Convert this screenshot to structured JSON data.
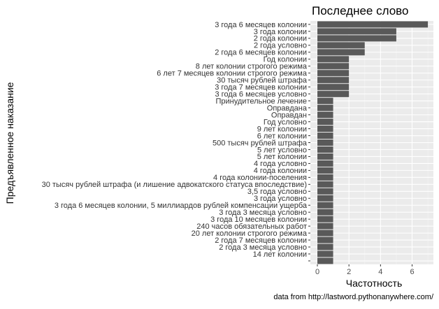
{
  "chart_data": {
    "type": "bar",
    "orientation": "horizontal",
    "title": "Последнее слово",
    "xlabel": "Частотность",
    "ylabel": "Предъявленное наказание",
    "caption": "data from http://lastword.pythonanywhere.com/",
    "xlim": [
      0,
      7.35
    ],
    "xticks": [
      "0",
      "2",
      "4",
      "6"
    ],
    "grid": true,
    "categories": [
      "3 года 6 месяцев колонии",
      "3 года колонии",
      "2 года колонии",
      "2 года условно",
      "2 года 6 месяцев колонии",
      "Год колонии",
      "8 лет колонии строгого режима",
      "6 лет 7 месяцев колонии строгого режима",
      "30 тысяч рублей штрафа",
      "3 года 7 месяцев колонии",
      "3 года 6 месяцев условно",
      "Принудительное лечение",
      "Оправдана",
      "Оправдан",
      "Год условно",
      "9 лет колонии",
      "6 лет колонии",
      "500 тысяч рублей штрафа",
      "5 лет условно",
      "5 лет колонии",
      "4 года условно",
      "4 года колонии",
      "4 года колонии-поселения",
      "30 тысяч рублей штрафа (и лишение адвокатского статуса впоследствие)",
      "3,5 года условно",
      "3 года условно",
      "3 года 6 месяцев колонии, 5 миллиардов рублей компенсации ущерба",
      "3 года 3 месяца условно",
      "3 года 10 месяцев колонии",
      "240 часов обязательных работ",
      "20 лет колонии строгого режима",
      "2 года 7 месяцев колонии",
      "2 года 3 месяца условно",
      "14 лет колонии",
      ""
    ],
    "values": [
      7,
      5,
      5,
      3,
      3,
      2,
      2,
      2,
      2,
      2,
      2,
      1,
      1,
      1,
      1,
      1,
      1,
      1,
      1,
      1,
      1,
      1,
      1,
      1,
      1,
      1,
      1,
      1,
      1,
      1,
      1,
      1,
      1,
      1,
      1
    ],
    "colors": {
      "bar": "#595959",
      "panel": "#ebebeb",
      "grid_major": "#ffffff",
      "grid_minor": "#f5f5f5"
    }
  }
}
